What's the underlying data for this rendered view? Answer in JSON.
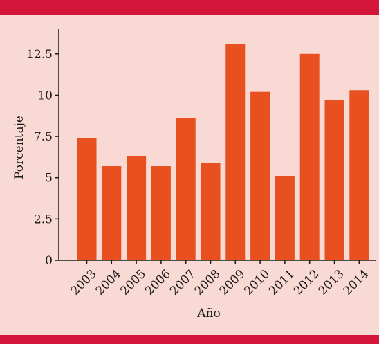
{
  "chart_data": {
    "type": "bar",
    "categories": [
      "2003",
      "2004",
      "2005",
      "2006",
      "2007",
      "2008",
      "2009",
      "2010",
      "2011",
      "2012",
      "2013",
      "2014"
    ],
    "values": [
      7.4,
      5.7,
      6.3,
      5.7,
      8.6,
      5.9,
      13.1,
      10.2,
      5.1,
      12.5,
      9.7,
      10.3
    ],
    "xlabel": "Año",
    "ylabel": "Porcentaje",
    "ylim": [
      0,
      14
    ],
    "yticks": [
      0,
      2.5,
      5,
      7.5,
      10,
      12.5
    ],
    "ytick_labels": [
      "0",
      "2.5",
      "5",
      "7.5",
      "10",
      "12.5"
    ],
    "grid": false,
    "colors": {
      "bar": "#e8501f",
      "background": "#f9d9d3",
      "border": "#d4153a"
    }
  }
}
